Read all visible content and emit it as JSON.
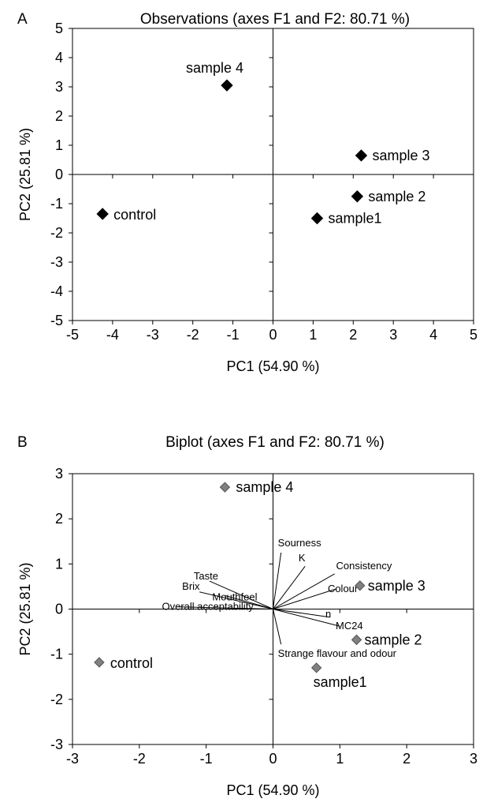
{
  "chart_data": [
    {
      "panel_label": "A",
      "type": "scatter",
      "title": "Observations (axes F1 and F2: 80.71 %)",
      "xlabel": "PC1 (54.90 %)",
      "ylabel": "PC2 (25.81 %)",
      "xlim": [
        -5,
        5
      ],
      "ylim": [
        -5,
        5
      ],
      "xticks": [
        -5,
        -4,
        -3,
        -2,
        -1,
        0,
        1,
        2,
        3,
        4,
        5
      ],
      "yticks": [
        -5,
        -4,
        -3,
        -2,
        -1,
        0,
        1,
        2,
        3,
        4,
        5
      ],
      "grid": false,
      "marker_color": "#000000",
      "points": [
        {
          "label": "sample 4",
          "x": -1.15,
          "y": 3.05
        },
        {
          "label": "sample 3",
          "x": 2.2,
          "y": 0.65
        },
        {
          "label": "sample 2",
          "x": 2.1,
          "y": -0.75
        },
        {
          "label": "sample1",
          "x": 1.1,
          "y": -1.5
        },
        {
          "label": "control",
          "x": -4.25,
          "y": -1.35
        }
      ]
    },
    {
      "panel_label": "B",
      "type": "scatter",
      "title": "Biplot (axes F1 and F2: 80.71 %)",
      "xlabel": "PC1 (54.90 %)",
      "ylabel": "PC2 (25.81 %)",
      "xlim": [
        -3,
        3
      ],
      "ylim": [
        -3,
        3
      ],
      "xticks": [
        -3,
        -2,
        -1,
        0,
        1,
        2,
        3
      ],
      "yticks": [
        -3,
        -2,
        -1,
        0,
        1,
        2,
        3
      ],
      "grid": false,
      "marker_color": "#808080",
      "points": [
        {
          "label": "sample 4",
          "x": -0.72,
          "y": 2.7
        },
        {
          "label": "sample 3",
          "x": 1.3,
          "y": 0.52
        },
        {
          "label": "sample 2",
          "x": 1.25,
          "y": -0.68
        },
        {
          "label": "sample1",
          "x": 0.65,
          "y": -1.3
        },
        {
          "label": "control",
          "x": -2.6,
          "y": -1.18
        }
      ],
      "vectors": [
        {
          "label": "Sourness",
          "x": 0.12,
          "y": 1.25
        },
        {
          "label": "K",
          "x": 0.48,
          "y": 0.95
        },
        {
          "label": "Consistency",
          "x": 0.92,
          "y": 0.78
        },
        {
          "label": "Colour",
          "x": 0.95,
          "y": 0.45
        },
        {
          "label": "n",
          "x": 0.85,
          "y": -0.18
        },
        {
          "label": "MC24",
          "x": 1.0,
          "y": -0.38
        },
        {
          "label": "Strange flavour and odour",
          "x": 0.12,
          "y": -0.78
        },
        {
          "label": "Taste",
          "x": -0.95,
          "y": 0.62
        },
        {
          "label": "Brix",
          "x": -1.1,
          "y": 0.38
        },
        {
          "label": "Mouthfeel",
          "x": -0.72,
          "y": 0.3
        },
        {
          "label": "Overall acceptability",
          "x": -1.45,
          "y": 0.05
        }
      ]
    }
  ]
}
